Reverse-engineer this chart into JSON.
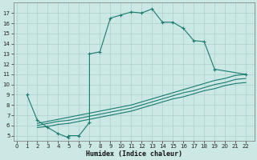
{
  "xlabel": "Humidex (Indice chaleur)",
  "bg_color": "#cce8e5",
  "grid_color": "#aad0cc",
  "line_color": "#1a7a6e",
  "curve1_x": [
    1,
    2,
    3,
    4,
    5,
    5,
    6,
    7,
    7,
    8,
    9,
    10,
    11,
    12,
    13,
    14,
    15,
    16,
    17,
    18,
    19,
    22
  ],
  "curve1_y": [
    9.0,
    6.5,
    5.8,
    5.2,
    4.8,
    5.0,
    5.0,
    6.3,
    13.0,
    13.2,
    16.5,
    16.8,
    17.1,
    17.0,
    17.4,
    16.1,
    16.1,
    15.5,
    14.3,
    14.2,
    11.5,
    11.0
  ],
  "curve2_x": [
    2,
    3,
    4,
    5,
    6,
    7,
    8,
    9,
    10,
    11,
    12,
    13,
    14,
    15,
    16,
    17,
    18,
    19,
    20,
    21,
    22
  ],
  "curve2_y": [
    6.2,
    6.4,
    6.6,
    6.8,
    7.0,
    7.2,
    7.4,
    7.6,
    7.8,
    8.0,
    8.3,
    8.6,
    8.9,
    9.2,
    9.5,
    9.8,
    10.1,
    10.4,
    10.6,
    10.9,
    11.0
  ],
  "curve3_x": [
    2,
    3,
    4,
    5,
    6,
    7,
    8,
    9,
    10,
    11,
    12,
    13,
    14,
    15,
    16,
    17,
    18,
    19,
    20,
    21,
    22
  ],
  "curve3_y": [
    6.0,
    6.2,
    6.4,
    6.5,
    6.7,
    6.9,
    7.1,
    7.3,
    7.5,
    7.7,
    8.0,
    8.3,
    8.6,
    8.9,
    9.2,
    9.4,
    9.7,
    10.0,
    10.2,
    10.5,
    10.6
  ],
  "curve4_x": [
    2,
    3,
    4,
    5,
    6,
    7,
    8,
    9,
    10,
    11,
    12,
    13,
    14,
    15,
    16,
    17,
    18,
    19,
    20,
    21,
    22
  ],
  "curve4_y": [
    5.8,
    5.9,
    6.1,
    6.2,
    6.4,
    6.6,
    6.8,
    7.0,
    7.2,
    7.4,
    7.7,
    8.0,
    8.3,
    8.6,
    8.8,
    9.1,
    9.4,
    9.6,
    9.9,
    10.1,
    10.2
  ],
  "xlim": [
    -0.3,
    22.8
  ],
  "ylim": [
    4.5,
    18.0
  ],
  "yticks": [
    5,
    6,
    7,
    8,
    9,
    10,
    11,
    12,
    13,
    14,
    15,
    16,
    17
  ],
  "xticks": [
    0,
    1,
    2,
    3,
    4,
    5,
    6,
    7,
    8,
    9,
    10,
    11,
    12,
    13,
    14,
    15,
    16,
    17,
    18,
    19,
    20,
    21,
    22
  ]
}
